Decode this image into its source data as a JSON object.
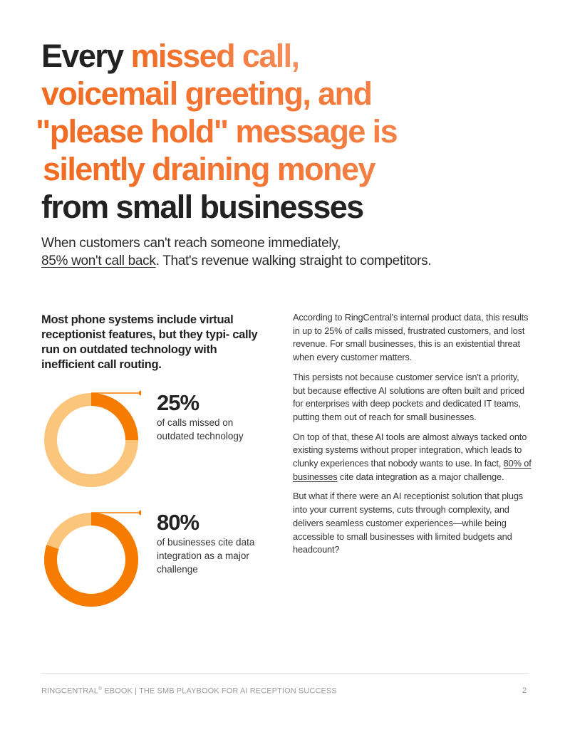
{
  "headline": {
    "line1_dark": "Every ",
    "line1_accent": "missed call,",
    "line2_accent": "voicemail greeting, and",
    "line3_accent": "\"please hold\" message is",
    "line4_accent": "silently draining money",
    "line5_dark": "from small businesses"
  },
  "subhead": {
    "part1": "When customers can't reach someone immediately,",
    "underlined": "85% won't call back",
    "part2": ". That's revenue walking straight to competitors."
  },
  "lead_text": "Most phone systems include virtual receptionist features, but they typi- cally run on outdated technology with inefficient call routing.",
  "stats": [
    {
      "value": "25%",
      "label": "of calls missed on outdated technology",
      "fraction": 0.25
    },
    {
      "value": "80%",
      "label": "of businesses cite data integration as a major challenge",
      "fraction": 0.8
    }
  ],
  "body": {
    "p1": "According to RingCentral's internal product data, this results in up to 25% of calls missed, frustrated customers, and lost revenue. For small businesses, this is an existential threat when every customer matters.",
    "p2": "This persists not because customer service isn't a priority, but because effective AI  solutions are often built and priced for enterprises with deep pockets and dedicated IT teams, putting them out of reach for small businesses.",
    "p3_before": "On top of that, these AI tools are almost always tacked onto existing systems without proper integration, which leads to clunky experiences that nobody wants to use. In fact, ",
    "p3_link": "80% of businesses",
    "p3_after": " cite data integration as a major challenge.",
    "p4": "But what if there were an AI receptionist solution that plugs into your current systems, cuts through complexity, and delivers seamless customer experiences—while being accessible to small businesses with limited budgets and headcount?"
  },
  "footer": {
    "brand": "RINGCENTRAL",
    "reg": "®",
    "title": " EBOOK  |  THE SMB PLAYBOOK FOR AI RECEPTION SUCCESS",
    "page": "2"
  },
  "colors": {
    "accent": "#f57c00",
    "accent_light": "#fbc57c",
    "headline_gradient_start": "#f26b21",
    "headline_gradient_end": "#f58e5c",
    "text": "#222222"
  }
}
